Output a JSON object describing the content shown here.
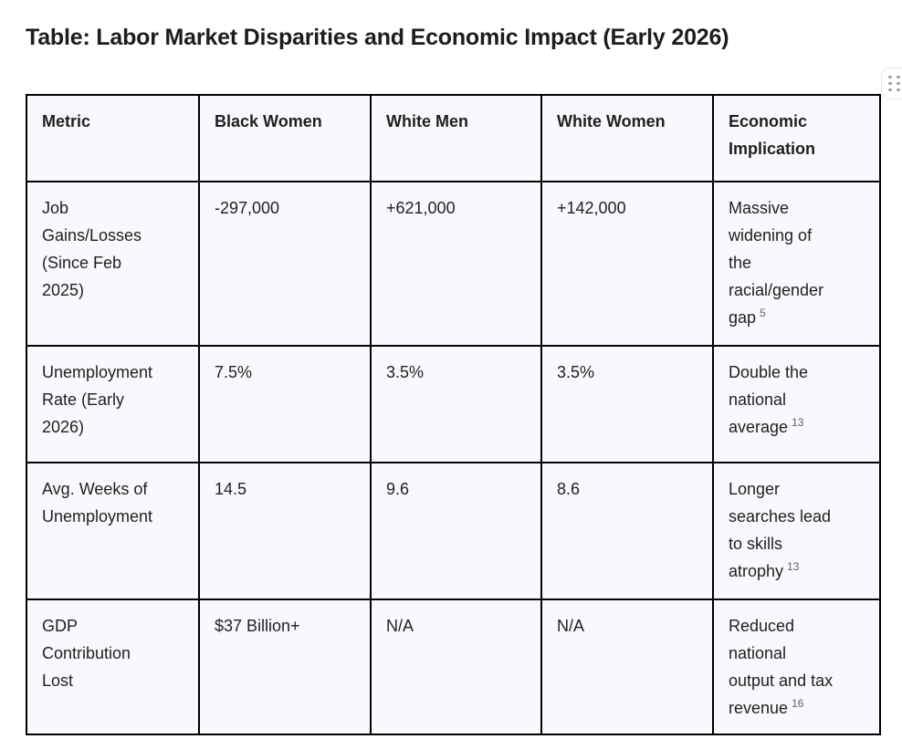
{
  "page": {
    "title": "Table: Labor Market Disparities and Economic Impact (Early 2026)"
  },
  "toolbar": {
    "drag_handle_icon": "drag-handle"
  },
  "colors": {
    "cell_background": "#f8f9fc",
    "table_border": "#000000",
    "text": "#1f1f1f",
    "citation": "#5f6368",
    "handle_dots": "#9aa0a6"
  },
  "table": {
    "columns": [
      "Metric",
      "Black Women",
      "White Men",
      "White Women",
      "Economic Implication"
    ],
    "rows": [
      {
        "metric": "Job\nGains/Losses\n(Since Feb\n2025)",
        "black_women": "-297,000",
        "white_men": "+621,000",
        "white_women": "+142,000",
        "implication": "Massive\nwidening of\nthe\nracial/gender\ngap",
        "ref": "5"
      },
      {
        "metric": "Unemployment\nRate (Early\n2026)",
        "black_women": "7.5%",
        "white_men": "3.5%",
        "white_women": "3.5%",
        "implication": "Double the\nnational\naverage",
        "ref": "13"
      },
      {
        "metric": "Avg. Weeks of\nUnemployment",
        "black_women": "14.5",
        "white_men": "9.6",
        "white_women": "8.6",
        "implication": "Longer\nsearches lead\nto skills\natrophy",
        "ref": "13"
      },
      {
        "metric": "GDP\nContribution\nLost",
        "black_women": "$37 Billion+",
        "white_men": "N/A",
        "white_women": "N/A",
        "implication": "Reduced\nnational\noutput and tax\nrevenue",
        "ref": "16"
      }
    ]
  }
}
